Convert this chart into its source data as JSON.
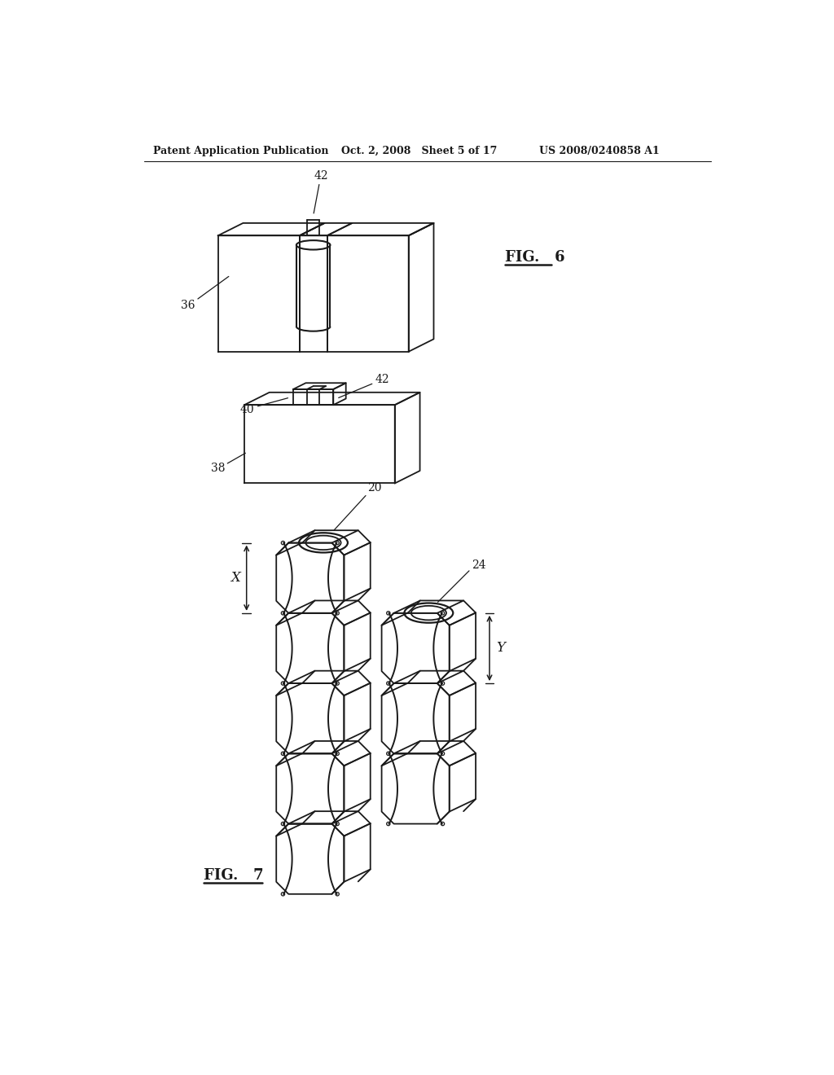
{
  "bg_color": "#ffffff",
  "line_color": "#1a1a1a",
  "header_left": "Patent Application Publication",
  "header_mid": "Oct. 2, 2008   Sheet 5 of 17",
  "header_right": "US 2008/0240858 A1",
  "fig6_label": "FIG.   6",
  "fig7_label": "FIG.   7",
  "fig6_ref_36": "36",
  "fig6_ref_38": "38",
  "fig6_ref_40": "40",
  "fig6_ref_42a": "42",
  "fig6_ref_42b": "42",
  "fig7_ref_20": "20",
  "fig7_ref_24": "24",
  "fig7_ref_X": "X",
  "fig7_ref_Y": "Y"
}
